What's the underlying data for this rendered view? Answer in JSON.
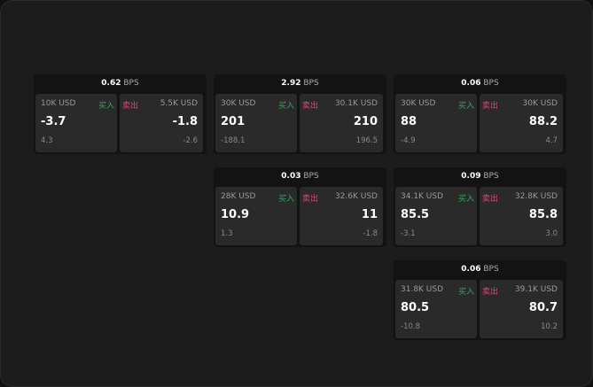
{
  "colors": {
    "buy": "#3aa55c",
    "sell": "#e0457b"
  },
  "unit": "BPS",
  "buy_label": "买入",
  "sell_label": "卖出",
  "quotes": [
    {
      "spread": "0.62",
      "buy": {
        "size": "10K USD",
        "price": "-3.7",
        "change": "4.3"
      },
      "sell": {
        "size": "5.5K USD",
        "price": "-1.8",
        "change": "-2.6"
      }
    },
    {
      "spread": "2.92",
      "buy": {
        "size": "30K USD",
        "price": "201",
        "change": "-188.1"
      },
      "sell": {
        "size": "30.1K USD",
        "price": "210",
        "change": "196.5"
      }
    },
    {
      "spread": "0.06",
      "buy": {
        "size": "30K USD",
        "price": "88",
        "change": "-4.9"
      },
      "sell": {
        "size": "30K USD",
        "price": "88.2",
        "change": "4.7"
      }
    },
    {
      "spread": "0.03",
      "buy": {
        "size": "28K USD",
        "price": "10.9",
        "change": "1.3"
      },
      "sell": {
        "size": "32.6K USD",
        "price": "11",
        "change": "-1.8"
      }
    },
    {
      "spread": "0.09",
      "buy": {
        "size": "34.1K USD",
        "price": "85.5",
        "change": "-3.1"
      },
      "sell": {
        "size": "32.8K USD",
        "price": "85.8",
        "change": "3.0"
      }
    },
    {
      "spread": "0.06",
      "buy": {
        "size": "31.8K USD",
        "price": "80.5",
        "change": "-10.8"
      },
      "sell": {
        "size": "39.1K USD",
        "price": "80.7",
        "change": "10.2"
      }
    }
  ]
}
